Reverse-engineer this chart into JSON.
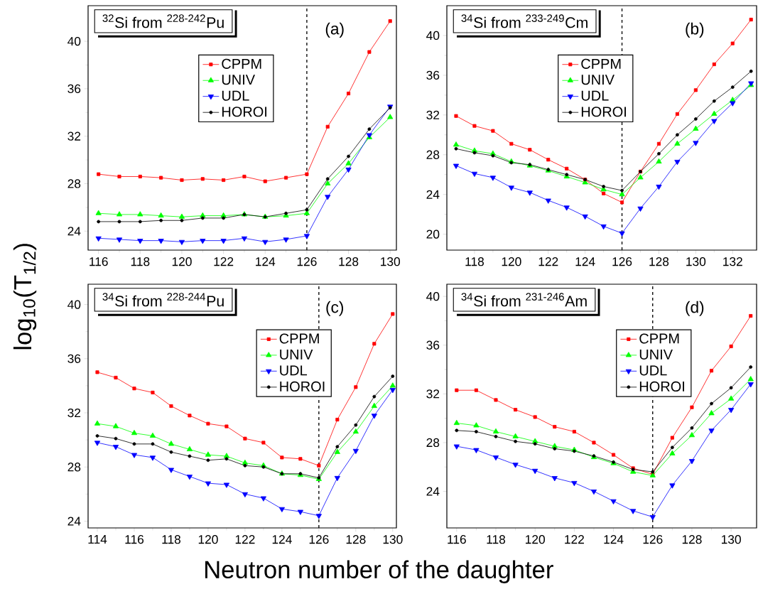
{
  "chart_data": [
    {
      "type": "line",
      "title": "$^{32}$Si from $^{228-242}$Pu",
      "ylabel": "log$_{10}$(T$_{1/2}$)",
      "annotations": [
        "(a)"
      ],
      "legend": "top center",
      "x": [
        116,
        117,
        118,
        119,
        120,
        121,
        122,
        123,
        124,
        125,
        126,
        127,
        128,
        129,
        130
      ],
      "xlim": [
        115.5,
        130.3
      ],
      "ylim": [
        22.4,
        43
      ],
      "xticks": [
        116,
        118,
        120,
        122,
        124,
        126,
        128,
        130
      ],
      "yticks": [
        24,
        28,
        32,
        36,
        40
      ],
      "ref_lines": [
        {
          "axis": "x",
          "value": 126,
          "color": "#000000",
          "line_style": "dashed"
        }
      ],
      "series": [
        {
          "name": "CPPM",
          "color": "#ff0000",
          "marker": "square",
          "values": [
            28.8,
            28.6,
            28.6,
            28.5,
            28.3,
            28.4,
            28.3,
            28.6,
            28.2,
            28.5,
            28.8,
            32.8,
            35.6,
            39.1,
            41.7
          ]
        },
        {
          "name": "UNIV",
          "color": "#00ff00",
          "marker": "triangle",
          "values": [
            25.5,
            25.4,
            25.4,
            25.3,
            25.2,
            25.3,
            25.3,
            25.4,
            25.2,
            25.3,
            25.5,
            28.0,
            29.7,
            31.9,
            33.6
          ]
        },
        {
          "name": "UDL",
          "color": "#0000ff",
          "marker": "triangle down",
          "values": [
            23.4,
            23.3,
            23.2,
            23.2,
            23.1,
            23.2,
            23.2,
            23.4,
            23.1,
            23.3,
            23.6,
            26.9,
            29.2,
            32.1,
            34.5
          ]
        },
        {
          "name": "HOROI",
          "color": "#000000",
          "marker": "circle",
          "values": [
            24.8,
            24.8,
            24.8,
            24.9,
            24.9,
            25.1,
            25.1,
            25.4,
            25.2,
            25.5,
            25.8,
            28.4,
            30.3,
            32.6,
            34.4
          ]
        }
      ]
    },
    {
      "type": "line",
      "title": "$^{34}$Si from $^{233-249}$Cm",
      "annotations": [
        "(b)"
      ],
      "legend": "top center",
      "x": [
        117,
        118,
        119,
        120,
        121,
        122,
        123,
        124,
        125,
        126,
        127,
        128,
        129,
        130,
        131,
        132,
        133
      ],
      "xlim": [
        116.5,
        133.3
      ],
      "ylim": [
        18.4,
        43
      ],
      "xticks": [
        118,
        120,
        122,
        124,
        126,
        128,
        130,
        132
      ],
      "yticks": [
        20,
        24,
        28,
        32,
        36,
        40
      ],
      "ref_lines": [
        {
          "axis": "x",
          "value": 126,
          "color": "#000000",
          "line_style": "dashed"
        }
      ],
      "series": [
        {
          "name": "CPPM",
          "color": "#ff0000",
          "marker": "square",
          "values": [
            31.9,
            30.9,
            30.4,
            29.1,
            28.5,
            27.5,
            26.6,
            25.5,
            24.1,
            23.2,
            26.3,
            29.1,
            32.1,
            34.5,
            37.1,
            39.2,
            41.6
          ]
        },
        {
          "name": "UNIV",
          "color": "#00ff00",
          "marker": "triangle",
          "values": [
            29.0,
            28.4,
            28.1,
            27.3,
            26.9,
            26.4,
            25.8,
            25.2,
            24.5,
            24.0,
            25.7,
            27.3,
            29.1,
            30.6,
            32.1,
            33.5,
            35.0
          ]
        },
        {
          "name": "UDL",
          "color": "#0000ff",
          "marker": "triangle down",
          "values": [
            26.9,
            26.1,
            25.7,
            24.7,
            24.2,
            23.4,
            22.7,
            21.8,
            20.8,
            20.1,
            22.6,
            24.8,
            27.3,
            29.2,
            31.4,
            33.2,
            35.2
          ]
        },
        {
          "name": "HOROI",
          "color": "#000000",
          "marker": "circle",
          "values": [
            28.6,
            28.2,
            27.9,
            27.2,
            27.0,
            26.5,
            26.0,
            25.5,
            24.8,
            24.4,
            26.3,
            28.1,
            30.0,
            31.6,
            33.4,
            34.8,
            36.4
          ]
        }
      ]
    },
    {
      "type": "line",
      "title": "$^{34}$Si from $^{228-244}$Pu",
      "xlabel": "Neutron number of the daughter",
      "annotations": [
        "(c)"
      ],
      "legend": "top right",
      "x": [
        114,
        115,
        116,
        117,
        118,
        119,
        120,
        121,
        122,
        123,
        124,
        125,
        126,
        127,
        128,
        129,
        130
      ],
      "xlim": [
        113.5,
        130.2
      ],
      "ylim": [
        23.5,
        41.5
      ],
      "xticks": [
        114,
        116,
        118,
        120,
        122,
        124,
        126,
        128,
        130
      ],
      "yticks": [
        24,
        28,
        32,
        36,
        40
      ],
      "ref_lines": [
        {
          "axis": "x",
          "value": 126,
          "color": "#000000",
          "line_style": "dashed"
        }
      ],
      "series": [
        {
          "name": "CPPM",
          "color": "#ff0000",
          "marker": "square",
          "values": [
            35.0,
            34.6,
            33.8,
            33.5,
            32.5,
            31.8,
            31.2,
            31.0,
            30.1,
            29.8,
            28.7,
            28.6,
            28.1,
            31.5,
            33.9,
            37.1,
            39.3
          ]
        },
        {
          "name": "UNIV",
          "color": "#00ff00",
          "marker": "triangle",
          "values": [
            31.2,
            31.0,
            30.5,
            30.3,
            29.7,
            29.3,
            28.9,
            28.8,
            28.3,
            28.1,
            27.5,
            27.4,
            27.1,
            29.1,
            30.6,
            32.5,
            34.0
          ]
        },
        {
          "name": "UDL",
          "color": "#0000ff",
          "marker": "triangle down",
          "values": [
            29.8,
            29.5,
            28.9,
            28.7,
            27.8,
            27.3,
            26.8,
            26.7,
            26.0,
            25.7,
            24.9,
            24.7,
            24.4,
            27.2,
            29.2,
            31.8,
            33.7
          ]
        },
        {
          "name": "HOROI",
          "color": "#000000",
          "marker": "circle",
          "values": [
            30.3,
            30.1,
            29.7,
            29.7,
            29.1,
            28.8,
            28.5,
            28.6,
            28.1,
            28.0,
            27.5,
            27.5,
            27.2,
            29.5,
            31.1,
            33.2,
            34.7
          ]
        }
      ]
    },
    {
      "type": "line",
      "title": "$^{34}$Si from $^{231-246}$Am",
      "annotations": [
        "(d)"
      ],
      "legend": "top right",
      "x": [
        116,
        117,
        118,
        119,
        120,
        121,
        122,
        123,
        124,
        125,
        126,
        127,
        128,
        129,
        130,
        131
      ],
      "xlim": [
        115.5,
        131.3
      ],
      "ylim": [
        21,
        41
      ],
      "xticks": [
        116,
        118,
        120,
        122,
        124,
        126,
        128,
        130
      ],
      "yticks": [
        24,
        28,
        32,
        36,
        40
      ],
      "ref_lines": [
        {
          "axis": "x",
          "value": 126,
          "color": "#000000",
          "line_style": "dashed"
        }
      ],
      "series": [
        {
          "name": "CPPM",
          "color": "#ff0000",
          "marker": "square",
          "values": [
            32.3,
            32.3,
            31.5,
            30.7,
            30.1,
            29.3,
            28.9,
            28.0,
            27.0,
            25.9,
            25.4,
            28.4,
            30.9,
            33.9,
            35.9,
            38.4
          ]
        },
        {
          "name": "UNIV",
          "color": "#00ff00",
          "marker": "triangle",
          "values": [
            29.6,
            29.4,
            28.9,
            28.5,
            28.1,
            27.7,
            27.4,
            26.8,
            26.3,
            25.6,
            25.3,
            27.1,
            28.6,
            30.4,
            31.6,
            33.2
          ]
        },
        {
          "name": "UDL",
          "color": "#0000ff",
          "marker": "triangle down",
          "values": [
            27.7,
            27.4,
            26.8,
            26.2,
            25.7,
            25.1,
            24.7,
            24.0,
            23.2,
            22.4,
            21.9,
            24.5,
            26.5,
            29.0,
            30.7,
            32.8
          ]
        },
        {
          "name": "HOROI",
          "color": "#000000",
          "marker": "circle",
          "values": [
            29.0,
            28.9,
            28.5,
            28.1,
            27.9,
            27.5,
            27.3,
            26.9,
            26.4,
            25.8,
            25.6,
            27.6,
            29.2,
            31.2,
            32.5,
            34.2
          ]
        }
      ]
    }
  ]
}
